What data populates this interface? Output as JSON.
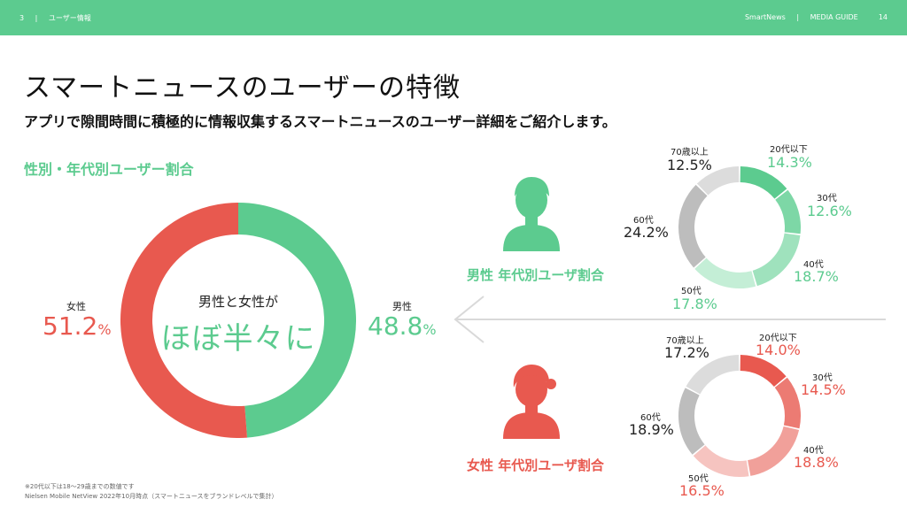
{
  "header": {
    "page_number": "3",
    "section": "ユーザー情報",
    "brand": "SmartNews",
    "guide": "MEDIA GUIDE",
    "page_right": "14",
    "separator": "|"
  },
  "title": "スマートニュースのユーザーの特徴",
  "subtitle": "アプリで隙間時間に積極的に情報収集するスマートニュースのユーザー詳細をご紹介します。",
  "section_label": "性別・年代別ユーザー割合",
  "colors": {
    "green": "#5ccb8f",
    "red": "#e8594f",
    "gray": "#c9c9c9"
  },
  "gender": {
    "center_caption": "男性と女性が",
    "center_main": "ほぼ半々に",
    "female_label": "女性",
    "female_value": "51.2",
    "male_label": "男性",
    "male_value": "48.8",
    "pct_unit": "%"
  },
  "male_group": {
    "title": "男性 年代別ユーザ割合",
    "labels": [
      "20代以下",
      "30代",
      "40代",
      "50代",
      "60代",
      "70歳以上"
    ],
    "values": [
      "14.3%",
      "12.6%",
      "18.7%",
      "17.8%",
      "24.2%",
      "12.5%"
    ]
  },
  "female_group": {
    "title": "女性 年代別ユーザ割合",
    "labels": [
      "20代以下",
      "30代",
      "40代",
      "50代",
      "60代",
      "70歳以上"
    ],
    "values": [
      "14.0%",
      "14.5%",
      "18.8%",
      "16.5%",
      "18.9%",
      "17.2%"
    ]
  },
  "footnote": {
    "line1": "※20代以下は18〜29歳までの数値です",
    "line2": "Nielsen Mobile NetView 2022年10月時点（スマートニュースをブランドレベルで集計）"
  },
  "chart_data": [
    {
      "type": "pie",
      "categories": [
        "男性",
        "女性"
      ],
      "values": [
        48.8,
        51.2
      ]
    },
    {
      "type": "pie",
      "title": "男性 年代別ユーザ割合",
      "categories": [
        "20代以下",
        "30代",
        "40代",
        "50代",
        "60代",
        "70歳以上"
      ],
      "values": [
        14.3,
        12.6,
        18.7,
        17.8,
        24.2,
        12.5
      ]
    },
    {
      "type": "pie",
      "title": "女性 年代別ユーザ割合",
      "categories": [
        "20代以下",
        "30代",
        "40代",
        "50代",
        "60代",
        "70歳以上"
      ],
      "values": [
        14.0,
        14.5,
        18.8,
        16.5,
        18.9,
        17.2
      ]
    }
  ]
}
